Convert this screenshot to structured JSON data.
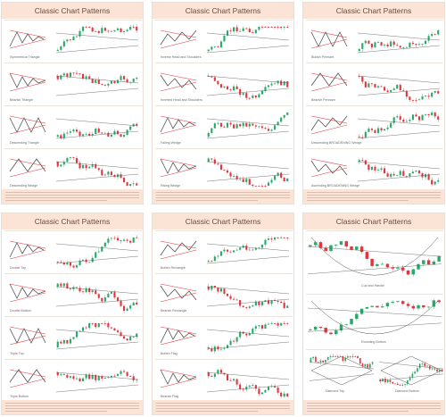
{
  "colors": {
    "header": "#fbe4d5",
    "up": "#2aa86a",
    "down": "#e0373f",
    "line": "#555555",
    "bg": "#ffffff"
  },
  "panels": [
    {
      "title": "Classic Chart Patterns",
      "labels": [
        "Symmetrical Triangle",
        "Bearish Triangle",
        "Descending Triangle",
        "Descending Wedge"
      ]
    },
    {
      "title": "Classic Chart Patterns",
      "labels": [
        "Inverse Head and Shoulders",
        "Inverted Head and Shoulders",
        "Falling Wedge",
        "Rising Wedge"
      ]
    },
    {
      "title": "Classic Chart Patterns",
      "labels": [
        "Bullish Pennant",
        "Bearish Pennant",
        "Descending BROADENING Wedge",
        "Ascending BROADENING Wedge"
      ]
    },
    {
      "title": "Classic Chart Patterns",
      "labels": [
        "Double Top",
        "Double Bottom",
        "Triple Top",
        "Triple Bottom"
      ]
    },
    {
      "title": "Classic Chart Patterns",
      "labels": [
        "Bullish Rectangle",
        "Bearish Rectangle",
        "Bullish Flag",
        "Bearish Flag"
      ]
    },
    {
      "title": "Classic Chart Patterns",
      "labels": [
        "Cup and Handle",
        "Rounding Bottom",
        "Diamond Top",
        "Diamond Bottom"
      ]
    }
  ]
}
